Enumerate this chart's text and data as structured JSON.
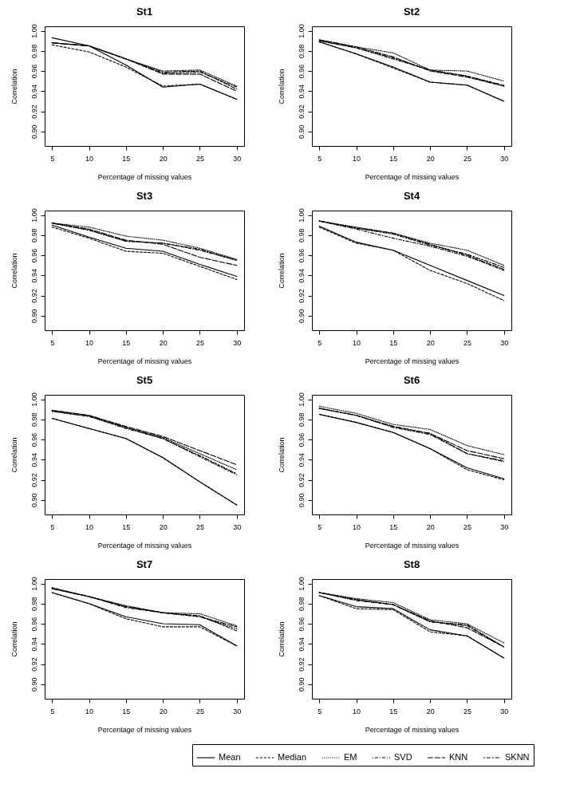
{
  "chart_data": [
    {
      "type": "line",
      "title": "St1",
      "xlabel": "Percentage of missing values",
      "ylabel": "Correlation",
      "x": [
        5,
        10,
        15,
        20,
        25,
        30
      ],
      "xlim": [
        4,
        31
      ],
      "xticks": [
        5,
        10,
        15,
        20,
        25,
        30
      ],
      "ylim": [
        0.8856,
        1.0044
      ],
      "yticks": [
        {
          "value": 0.9,
          "label": "0.90"
        },
        {
          "value": 0.92,
          "label": "0.92"
        },
        {
          "value": 0.94,
          "label": "0.94"
        },
        {
          "value": 0.96,
          "label": "0.96"
        },
        {
          "value": 0.98,
          "label": "0.98"
        },
        {
          "value": 1.0,
          "label": "1.00"
        }
      ],
      "grid": false,
      "legend": "bottom",
      "series": [
        {
          "name": "Mean",
          "color": "#000000",
          "line_style": "solid",
          "values": [
            0.993,
            0.985,
            0.966,
            0.944,
            0.947,
            0.932
          ]
        },
        {
          "name": "Median",
          "color": "#000000",
          "line_style": "dashed",
          "values": [
            0.986,
            0.979,
            0.964,
            0.945,
            0.947,
            0.932
          ]
        },
        {
          "name": "EM",
          "color": "#000000",
          "line_style": "dotted",
          "values": [
            0.988,
            0.985,
            0.972,
            0.96,
            0.961,
            0.945
          ]
        },
        {
          "name": "SVD",
          "color": "#000000",
          "line_style": "dashdot",
          "values": [
            0.988,
            0.985,
            0.972,
            0.958,
            0.959,
            0.944
          ]
        },
        {
          "name": "KNN",
          "color": "#000000",
          "line_style": "longdash",
          "values": [
            0.988,
            0.985,
            0.972,
            0.957,
            0.957,
            0.94
          ]
        },
        {
          "name": "SKNN",
          "color": "#000000",
          "line_style": "twodash",
          "values": [
            0.988,
            0.985,
            0.972,
            0.959,
            0.96,
            0.942
          ]
        }
      ]
    },
    {
      "type": "line",
      "title": "St2",
      "xlabel": "Percentage of missing values",
      "ylabel": "Correlation",
      "x": [
        5,
        10,
        15,
        20,
        25,
        30
      ],
      "xlim": [
        4,
        31
      ],
      "xticks": [
        5,
        10,
        15,
        20,
        25,
        30
      ],
      "ylim": [
        0.8856,
        1.0044
      ],
      "yticks": [
        {
          "value": 0.9,
          "label": "0.90"
        },
        {
          "value": 0.92,
          "label": "0.92"
        },
        {
          "value": 0.94,
          "label": "0.94"
        },
        {
          "value": 0.96,
          "label": "0.96"
        },
        {
          "value": 0.98,
          "label": "0.98"
        },
        {
          "value": 1.0,
          "label": "1.00"
        }
      ],
      "grid": false,
      "legend": "bottom",
      "series": [
        {
          "name": "Mean",
          "color": "#000000",
          "line_style": "solid",
          "values": [
            0.989,
            0.977,
            0.964,
            0.949,
            0.946,
            0.93
          ]
        },
        {
          "name": "Median",
          "color": "#000000",
          "line_style": "dashed",
          "values": [
            0.989,
            0.977,
            0.963,
            0.949,
            0.946,
            0.93
          ]
        },
        {
          "name": "EM",
          "color": "#000000",
          "line_style": "dotted",
          "values": [
            0.991,
            0.984,
            0.978,
            0.961,
            0.96,
            0.95
          ]
        },
        {
          "name": "SVD",
          "color": "#000000",
          "line_style": "dashdot",
          "values": [
            0.99,
            0.983,
            0.972,
            0.961,
            0.955,
            0.946
          ]
        },
        {
          "name": "KNN",
          "color": "#000000",
          "line_style": "longdash",
          "values": [
            0.991,
            0.984,
            0.974,
            0.96,
            0.954,
            0.945
          ]
        },
        {
          "name": "SKNN",
          "color": "#000000",
          "line_style": "twodash",
          "values": [
            0.99,
            0.983,
            0.973,
            0.961,
            0.955,
            0.945
          ]
        }
      ]
    },
    {
      "type": "line",
      "title": "St3",
      "xlabel": "Percentage of missing values",
      "ylabel": "Correlation",
      "x": [
        5,
        10,
        15,
        20,
        25,
        30
      ],
      "xlim": [
        4,
        31
      ],
      "xticks": [
        5,
        10,
        15,
        20,
        25,
        30
      ],
      "ylim": [
        0.8856,
        1.0044
      ],
      "yticks": [
        {
          "value": 0.9,
          "label": "0.90"
        },
        {
          "value": 0.92,
          "label": "0.92"
        },
        {
          "value": 0.94,
          "label": "0.94"
        },
        {
          "value": 0.96,
          "label": "0.96"
        },
        {
          "value": 0.98,
          "label": "0.98"
        },
        {
          "value": 1.0,
          "label": "1.00"
        }
      ],
      "grid": false,
      "legend": "bottom",
      "series": [
        {
          "name": "Mean",
          "color": "#000000",
          "line_style": "solid",
          "values": [
            0.99,
            0.978,
            0.967,
            0.964,
            0.951,
            0.939
          ]
        },
        {
          "name": "Median",
          "color": "#000000",
          "line_style": "dashed",
          "values": [
            0.988,
            0.977,
            0.964,
            0.962,
            0.949,
            0.936
          ]
        },
        {
          "name": "EM",
          "color": "#000000",
          "line_style": "dotted",
          "values": [
            0.992,
            0.988,
            0.979,
            0.975,
            0.967,
            0.956
          ]
        },
        {
          "name": "SVD",
          "color": "#000000",
          "line_style": "dashdot",
          "values": [
            0.992,
            0.985,
            0.974,
            0.972,
            0.965,
            0.955
          ]
        },
        {
          "name": "KNN",
          "color": "#000000",
          "line_style": "longdash",
          "values": [
            0.992,
            0.986,
            0.975,
            0.971,
            0.958,
            0.95
          ]
        },
        {
          "name": "SKNN",
          "color": "#000000",
          "line_style": "twodash",
          "values": [
            0.992,
            0.985,
            0.974,
            0.972,
            0.966,
            0.955
          ]
        }
      ]
    },
    {
      "type": "line",
      "title": "St4",
      "xlabel": "Percentage of missing values",
      "ylabel": "Correlation",
      "x": [
        5,
        10,
        15,
        20,
        25,
        30
      ],
      "xlim": [
        4,
        31
      ],
      "xticks": [
        5,
        10,
        15,
        20,
        25,
        30
      ],
      "ylim": [
        0.8856,
        1.0044
      ],
      "yticks": [
        {
          "value": 0.9,
          "label": "0.90"
        },
        {
          "value": 0.92,
          "label": "0.92"
        },
        {
          "value": 0.94,
          "label": "0.94"
        },
        {
          "value": 0.96,
          "label": "0.96"
        },
        {
          "value": 0.98,
          "label": "0.98"
        },
        {
          "value": 1.0,
          "label": "1.00"
        }
      ],
      "grid": false,
      "legend": "bottom",
      "series": [
        {
          "name": "Mean",
          "color": "#000000",
          "line_style": "solid",
          "values": [
            0.989,
            0.973,
            0.965,
            0.95,
            0.935,
            0.92
          ]
        },
        {
          "name": "Median",
          "color": "#000000",
          "line_style": "dashed",
          "values": [
            0.988,
            0.972,
            0.965,
            0.945,
            0.932,
            0.915
          ]
        },
        {
          "name": "EM",
          "color": "#000000",
          "line_style": "dotted",
          "values": [
            0.994,
            0.988,
            0.982,
            0.972,
            0.965,
            0.95
          ]
        },
        {
          "name": "SVD",
          "color": "#000000",
          "line_style": "dashdot",
          "values": [
            0.994,
            0.986,
            0.977,
            0.969,
            0.959,
            0.945
          ]
        },
        {
          "name": "KNN",
          "color": "#000000",
          "line_style": "longdash",
          "values": [
            0.994,
            0.987,
            0.982,
            0.971,
            0.96,
            0.946
          ]
        },
        {
          "name": "SKNN",
          "color": "#000000",
          "line_style": "twodash",
          "values": [
            0.994,
            0.987,
            0.981,
            0.97,
            0.961,
            0.948
          ]
        }
      ]
    },
    {
      "type": "line",
      "title": "St5",
      "xlabel": "Percentage of missing values",
      "ylabel": "Correlation",
      "x": [
        5,
        10,
        15,
        20,
        25,
        30
      ],
      "xlim": [
        4,
        31
      ],
      "xticks": [
        5,
        10,
        15,
        20,
        25,
        30
      ],
      "ylim": [
        0.8856,
        1.0044
      ],
      "yticks": [
        {
          "value": 0.9,
          "label": "0.90"
        },
        {
          "value": 0.92,
          "label": "0.92"
        },
        {
          "value": 0.94,
          "label": "0.94"
        },
        {
          "value": 0.96,
          "label": "0.96"
        },
        {
          "value": 0.98,
          "label": "0.98"
        },
        {
          "value": 1.0,
          "label": "1.00"
        }
      ],
      "grid": false,
      "legend": "bottom",
      "series": [
        {
          "name": "Mean",
          "color": "#000000",
          "line_style": "solid",
          "values": [
            0.981,
            0.971,
            0.961,
            0.942,
            0.918,
            0.895
          ]
        },
        {
          "name": "Median",
          "color": "#000000",
          "line_style": "dashed",
          "values": [
            0.981,
            0.971,
            0.961,
            0.942,
            0.918,
            0.895
          ]
        },
        {
          "name": "EM",
          "color": "#000000",
          "line_style": "dotted",
          "values": [
            0.989,
            0.984,
            0.972,
            0.962,
            0.946,
            0.93
          ]
        },
        {
          "name": "SVD",
          "color": "#000000",
          "line_style": "dashdot",
          "values": [
            0.988,
            0.983,
            0.971,
            0.961,
            0.943,
            0.925
          ]
        },
        {
          "name": "KNN",
          "color": "#000000",
          "line_style": "longdash",
          "values": [
            0.989,
            0.984,
            0.973,
            0.963,
            0.949,
            0.935
          ]
        },
        {
          "name": "SKNN",
          "color": "#000000",
          "line_style": "twodash",
          "values": [
            0.988,
            0.983,
            0.972,
            0.961,
            0.944,
            0.926
          ]
        }
      ]
    },
    {
      "type": "line",
      "title": "St6",
      "xlabel": "Percentage of missing values",
      "ylabel": "Correlation",
      "x": [
        5,
        10,
        15,
        20,
        25,
        30
      ],
      "xlim": [
        4,
        31
      ],
      "xticks": [
        5,
        10,
        15,
        20,
        25,
        30
      ],
      "ylim": [
        0.8856,
        1.0044
      ],
      "yticks": [
        {
          "value": 0.9,
          "label": "0.90"
        },
        {
          "value": 0.92,
          "label": "0.92"
        },
        {
          "value": 0.94,
          "label": "0.94"
        },
        {
          "value": 0.96,
          "label": "0.96"
        },
        {
          "value": 0.98,
          "label": "0.98"
        },
        {
          "value": 1.0,
          "label": "1.00"
        }
      ],
      "grid": false,
      "legend": "bottom",
      "series": [
        {
          "name": "Mean",
          "color": "#000000",
          "line_style": "solid",
          "values": [
            0.985,
            0.977,
            0.967,
            0.951,
            0.932,
            0.921
          ]
        },
        {
          "name": "Median",
          "color": "#000000",
          "line_style": "dashed",
          "values": [
            0.985,
            0.977,
            0.967,
            0.951,
            0.93,
            0.92
          ]
        },
        {
          "name": "EM",
          "color": "#000000",
          "line_style": "dotted",
          "values": [
            0.993,
            0.986,
            0.975,
            0.97,
            0.954,
            0.945
          ]
        },
        {
          "name": "SVD",
          "color": "#000000",
          "line_style": "dashdot",
          "values": [
            0.991,
            0.984,
            0.973,
            0.966,
            0.946,
            0.939
          ]
        },
        {
          "name": "KNN",
          "color": "#000000",
          "line_style": "longdash",
          "values": [
            0.991,
            0.984,
            0.973,
            0.966,
            0.949,
            0.941
          ]
        },
        {
          "name": "SKNN",
          "color": "#000000",
          "line_style": "twodash",
          "values": [
            0.991,
            0.984,
            0.972,
            0.965,
            0.946,
            0.938
          ]
        }
      ]
    },
    {
      "type": "line",
      "title": "St7",
      "xlabel": "Percentage of missing values",
      "ylabel": "Correlation",
      "x": [
        5,
        10,
        15,
        20,
        25,
        30
      ],
      "xlim": [
        4,
        31
      ],
      "xticks": [
        5,
        10,
        15,
        20,
        25,
        30
      ],
      "ylim": [
        0.8856,
        1.0044
      ],
      "yticks": [
        {
          "value": 0.9,
          "label": "0.90"
        },
        {
          "value": 0.92,
          "label": "0.92"
        },
        {
          "value": 0.94,
          "label": "0.94"
        },
        {
          "value": 0.96,
          "label": "0.96"
        },
        {
          "value": 0.98,
          "label": "0.98"
        },
        {
          "value": 1.0,
          "label": "1.00"
        }
      ],
      "grid": false,
      "legend": "bottom",
      "series": [
        {
          "name": "Mean",
          "color": "#000000",
          "line_style": "solid",
          "values": [
            0.991,
            0.98,
            0.967,
            0.96,
            0.959,
            0.938
          ]
        },
        {
          "name": "Median",
          "color": "#000000",
          "line_style": "dashed",
          "values": [
            0.991,
            0.98,
            0.965,
            0.957,
            0.957,
            0.938
          ]
        },
        {
          "name": "EM",
          "color": "#000000",
          "line_style": "dotted",
          "values": [
            0.996,
            0.987,
            0.978,
            0.971,
            0.97,
            0.958
          ]
        },
        {
          "name": "SVD",
          "color": "#000000",
          "line_style": "dashdot",
          "values": [
            0.995,
            0.987,
            0.976,
            0.971,
            0.967,
            0.955
          ]
        },
        {
          "name": "KNN",
          "color": "#000000",
          "line_style": "longdash",
          "values": [
            0.995,
            0.987,
            0.977,
            0.971,
            0.967,
            0.957
          ]
        },
        {
          "name": "SKNN",
          "color": "#000000",
          "line_style": "twodash",
          "values": [
            0.995,
            0.987,
            0.977,
            0.971,
            0.968,
            0.953
          ]
        }
      ]
    },
    {
      "type": "line",
      "title": "St8",
      "xlabel": "Percentage of missing values",
      "ylabel": "Correlation",
      "x": [
        5,
        10,
        15,
        20,
        25,
        30
      ],
      "xlim": [
        4,
        31
      ],
      "xticks": [
        5,
        10,
        15,
        20,
        25,
        30
      ],
      "ylim": [
        0.8856,
        1.0044
      ],
      "yticks": [
        {
          "value": 0.9,
          "label": "0.90"
        },
        {
          "value": 0.92,
          "label": "0.92"
        },
        {
          "value": 0.94,
          "label": "0.94"
        },
        {
          "value": 0.96,
          "label": "0.96"
        },
        {
          "value": 0.98,
          "label": "0.98"
        },
        {
          "value": 1.0,
          "label": "1.00"
        }
      ],
      "grid": false,
      "legend": "bottom",
      "series": [
        {
          "name": "Mean",
          "color": "#000000",
          "line_style": "solid",
          "values": [
            0.988,
            0.977,
            0.975,
            0.954,
            0.948,
            0.926
          ]
        },
        {
          "name": "Median",
          "color": "#000000",
          "line_style": "dashed",
          "values": [
            0.988,
            0.975,
            0.974,
            0.952,
            0.948,
            0.926
          ]
        },
        {
          "name": "EM",
          "color": "#000000",
          "line_style": "dotted",
          "values": [
            0.991,
            0.985,
            0.981,
            0.964,
            0.96,
            0.941
          ]
        },
        {
          "name": "SVD",
          "color": "#000000",
          "line_style": "dashdot",
          "values": [
            0.991,
            0.983,
            0.979,
            0.962,
            0.958,
            0.937
          ]
        },
        {
          "name": "KNN",
          "color": "#000000",
          "line_style": "longdash",
          "values": [
            0.991,
            0.984,
            0.979,
            0.963,
            0.956,
            0.937
          ]
        },
        {
          "name": "SKNN",
          "color": "#000000",
          "line_style": "twodash",
          "values": [
            0.991,
            0.984,
            0.979,
            0.962,
            0.959,
            0.937
          ]
        }
      ]
    }
  ]
}
